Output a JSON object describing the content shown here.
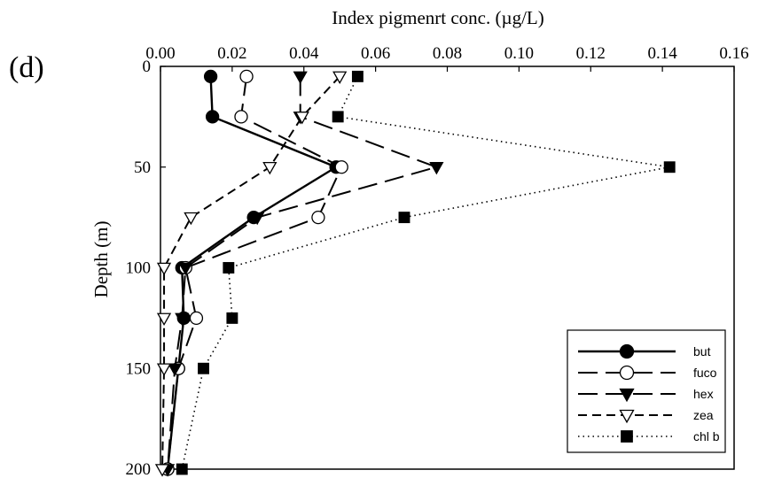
{
  "chart_data": {
    "type": "line",
    "panel_label": "(d)",
    "xlabel": "Index pigmenrt conc. (µg/L)",
    "ylabel": "Depth (m)",
    "xlim": [
      0,
      0.16
    ],
    "ylim": [
      0,
      200
    ],
    "y_inverted": true,
    "x_axis_position": "top",
    "xticks": [
      0.0,
      0.02,
      0.04,
      0.06,
      0.08,
      0.1,
      0.12,
      0.14,
      0.16
    ],
    "xtick_labels": [
      "0.00",
      "0.02",
      "0.04",
      "0.06",
      "0.08",
      "0.10",
      "0.12",
      "0.14",
      "0.16"
    ],
    "yticks": [
      0,
      50,
      100,
      150,
      200
    ],
    "ytick_labels": [
      "0",
      "50",
      "100",
      "150",
      "200"
    ],
    "grid": false,
    "legend_position": "bottom-right",
    "series": [
      {
        "name": "but",
        "line": "solid",
        "marker": "filled-circle",
        "color": "#000000",
        "x": [
          0.014,
          0.0145,
          0.049,
          0.026,
          0.006,
          0.0065,
          0.005,
          0.002
        ],
        "y": [
          5,
          25,
          50,
          75,
          100,
          125,
          150,
          200
        ]
      },
      {
        "name": "fuco",
        "line": "long-dash",
        "marker": "open-circle",
        "color": "#000000",
        "x": [
          0.024,
          0.0225,
          0.0505,
          0.044,
          0.007,
          0.01,
          0.005,
          0.002
        ],
        "y": [
          5,
          25,
          50,
          75,
          100,
          125,
          150,
          200
        ]
      },
      {
        "name": "hex",
        "line": "long-dash",
        "marker": "filled-triangle-down",
        "color": "#000000",
        "x": [
          0.039,
          0.039,
          0.077,
          0.027,
          0.007,
          0.006,
          0.004,
          0.002
        ],
        "y": [
          5,
          25,
          50,
          75,
          100,
          125,
          150,
          200
        ]
      },
      {
        "name": "zea",
        "line": "short-dash",
        "marker": "open-triangle-down",
        "color": "#000000",
        "x": [
          0.05,
          0.0395,
          0.0305,
          0.0085,
          0.001,
          0.001,
          0.001,
          0.0005
        ],
        "y": [
          5,
          25,
          50,
          75,
          100,
          125,
          150,
          200
        ]
      },
      {
        "name": "chl b",
        "line": "dotted",
        "marker": "filled-square",
        "color": "#000000",
        "x": [
          0.055,
          0.0495,
          0.142,
          0.068,
          0.019,
          0.02,
          0.012,
          0.006
        ],
        "y": [
          5,
          25,
          50,
          75,
          100,
          125,
          150,
          200
        ]
      }
    ]
  }
}
